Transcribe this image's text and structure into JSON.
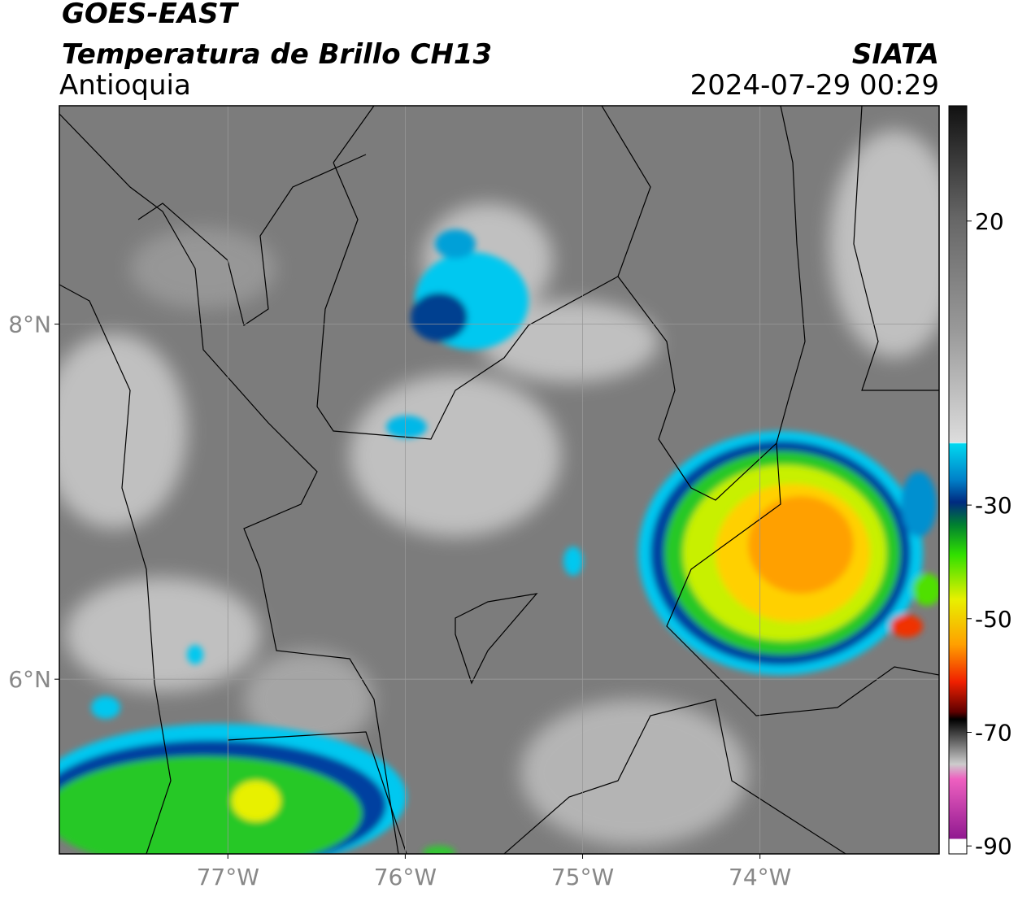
{
  "header": {
    "satellite": "GOES-EAST",
    "product": "Temperatura de Brillo CH13",
    "region": "Antioquia",
    "source": "SIATA",
    "datetime": "2024-07-29 00:29"
  },
  "map": {
    "lon_range": [
      -77.95,
      -72.99
    ],
    "lat_range": [
      5.016,
      9.23
    ],
    "lon_ticks": [
      {
        "value": -77,
        "label": "77°W"
      },
      {
        "value": -76,
        "label": "76°W"
      },
      {
        "value": -75,
        "label": "75°W"
      },
      {
        "value": -74,
        "label": "74°W"
      }
    ],
    "lat_ticks": [
      {
        "value": 8,
        "label": "8°N"
      },
      {
        "value": 6,
        "label": "6°N"
      }
    ],
    "grid": true
  },
  "colorbar": {
    "range": [
      -91.4,
      40.3
    ],
    "ticks": [
      20,
      -30,
      -50,
      -70,
      -90
    ]
  }
}
